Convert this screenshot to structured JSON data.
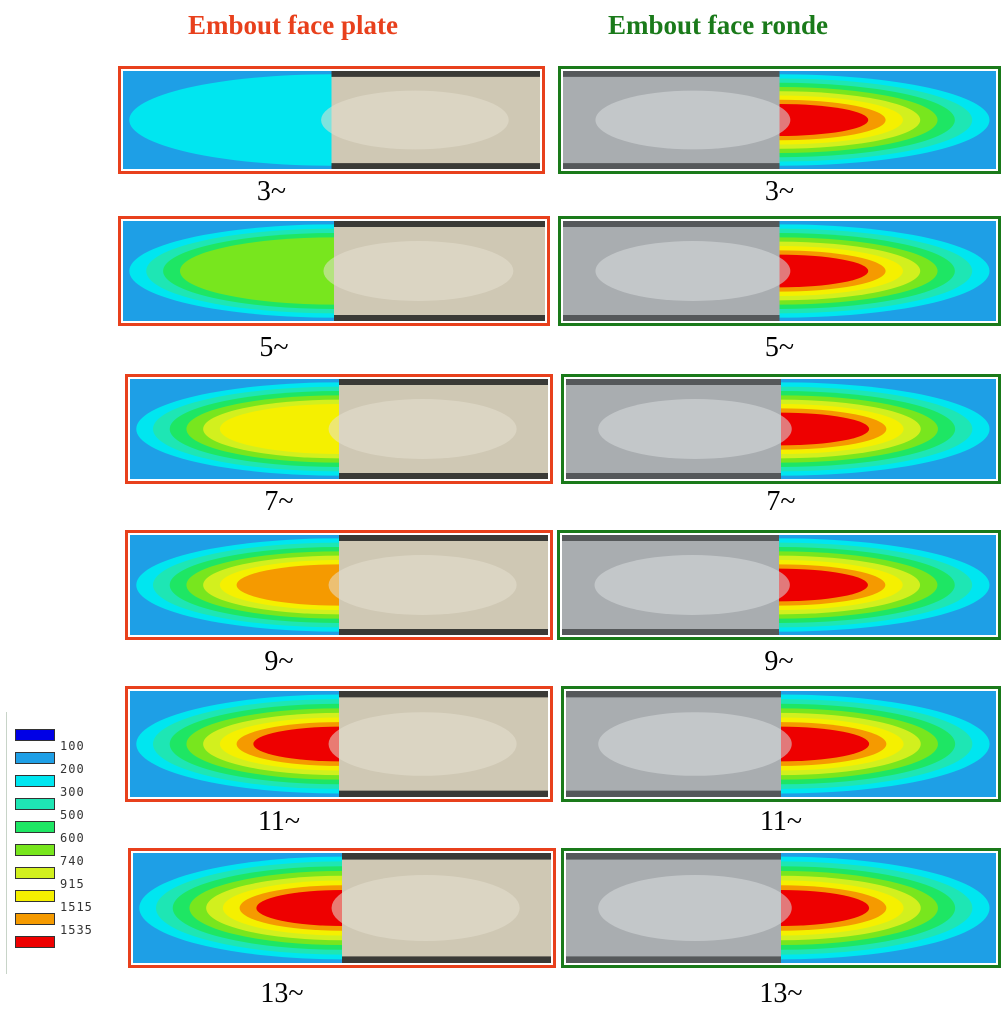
{
  "columns": [
    {
      "title": "Embout face plate",
      "color": "#e8401c",
      "frame_color": "#e8401c"
    },
    {
      "title": "Embout face ronde",
      "color": "#1a7a1a",
      "frame_color": "#1a7a1a"
    }
  ],
  "rows": [
    {
      "label": "3~",
      "plate_levels": 3,
      "round_levels": 10
    },
    {
      "label": "5~",
      "plate_levels": 6,
      "round_levels": 10
    },
    {
      "label": "7~",
      "plate_levels": 8,
      "round_levels": 10
    },
    {
      "label": "9~",
      "plate_levels": 9,
      "round_levels": 10
    },
    {
      "label": "11~",
      "plate_levels": 10,
      "round_levels": 10
    },
    {
      "label": "13~",
      "plate_levels": 10,
      "round_levels": 10
    }
  ],
  "legend": {
    "items": [
      {
        "value": "100",
        "color": "#0000e6"
      },
      {
        "value": "200",
        "color": "#1e9fe6"
      },
      {
        "value": "300",
        "color": "#00e6f0"
      },
      {
        "value": "500",
        "color": "#1ee6b4"
      },
      {
        "value": "600",
        "color": "#1ee664"
      },
      {
        "value": "740",
        "color": "#78e61e"
      },
      {
        "value": "915",
        "color": "#d2f01e"
      },
      {
        "value": "1515",
        "color": "#f5f000"
      },
      {
        "value": "1535",
        "color": "#f59a00"
      },
      {
        "value": "",
        "color": "#ee0000"
      }
    ]
  }
}
